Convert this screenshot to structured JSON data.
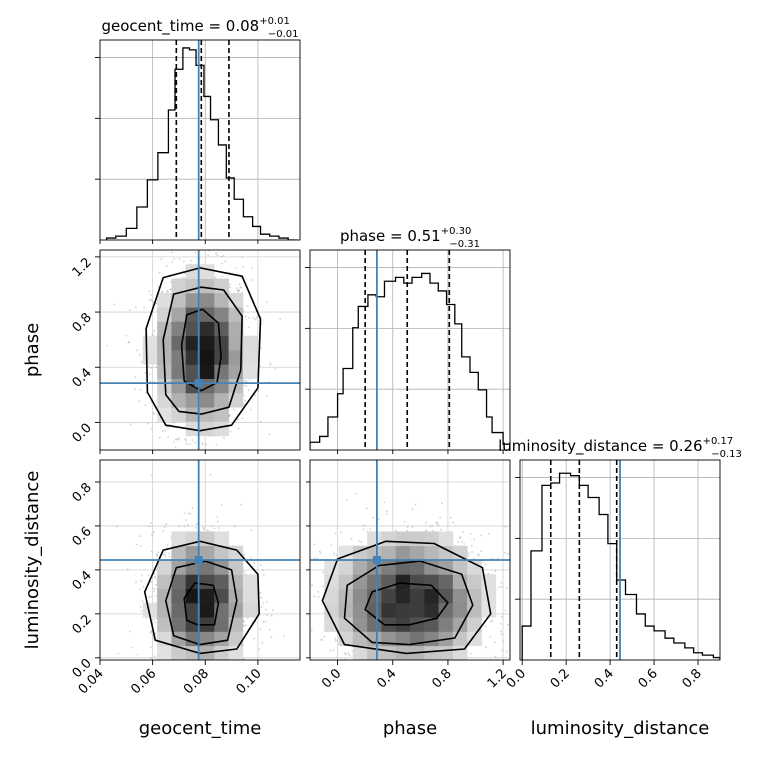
{
  "chart_data": {
    "type": "corner",
    "parameters": [
      "geocent_time",
      "phase",
      "luminosity_distance"
    ],
    "axes": {
      "geocent_time": {
        "label": "geocent_time",
        "range": [
          0.04,
          0.116
        ],
        "ticks": [
          "0.04",
          "0.06",
          "0.08",
          "0.10"
        ],
        "tick_values": [
          0.04,
          0.06,
          0.08,
          0.1
        ]
      },
      "phase": {
        "label": "phase",
        "range": [
          -0.2,
          1.25
        ],
        "ticks": [
          "0.0",
          "0.4",
          "0.8",
          "1.2"
        ],
        "tick_values": [
          0.0,
          0.4,
          0.8,
          1.2
        ]
      },
      "luminosity_distance": {
        "label": "luminosity_distance",
        "range": [
          -0.01,
          0.9
        ],
        "ticks": [
          "0.0",
          "0.2",
          "0.4",
          "0.6",
          "0.8"
        ],
        "tick_values": [
          0.0,
          0.2,
          0.4,
          0.6,
          0.8
        ]
      }
    },
    "titles": [
      {
        "param": "geocent_time",
        "name": "geocent_time",
        "median": "0.08",
        "plus": "+0.01",
        "minus": "−0.01"
      },
      {
        "param": "phase",
        "name": "phase",
        "median": "0.51",
        "plus": "+0.30",
        "minus": "−0.31"
      },
      {
        "param": "luminosity_distance",
        "name": "luminosity_distance",
        "median": "0.26",
        "plus": "+0.17",
        "minus": "−0.13"
      }
    ],
    "truths": {
      "geocent_time": 0.0775,
      "phase": 0.285,
      "luminosity_distance": 0.445
    },
    "quantiles": {
      "geocent_time": [
        0.069,
        0.0785,
        0.089
      ],
      "phase": [
        0.2,
        0.505,
        0.81
      ],
      "luminosity_distance": [
        0.13,
        0.26,
        0.43
      ]
    },
    "histograms": {
      "geocent_time": {
        "edges": [
          0.0425,
          0.046,
          0.05,
          0.054,
          0.058,
          0.062,
          0.066,
          0.0685,
          0.0715,
          0.074,
          0.0765,
          0.0795,
          0.082,
          0.085,
          0.088,
          0.091,
          0.0945,
          0.098,
          0.101,
          0.1045,
          0.108,
          0.1115,
          0.115
        ],
        "counts": [
          1,
          2,
          6,
          17,
          31,
          45,
          67,
          88,
          99,
          98,
          90,
          74,
          62,
          49,
          32,
          21,
          12,
          7,
          3,
          2,
          1,
          0
        ],
        "ymax": 100
      },
      "phase": {
        "edges": [
          -0.2,
          -0.13,
          -0.07,
          0.0,
          0.04,
          0.11,
          0.15,
          0.22,
          0.28,
          0.34,
          0.42,
          0.48,
          0.54,
          0.61,
          0.67,
          0.73,
          0.79,
          0.85,
          0.9,
          0.96,
          1.02,
          1.08,
          1.12,
          1.2,
          1.25
        ],
        "counts": [
          4,
          7,
          17,
          29,
          42,
          63,
          74,
          80,
          79,
          87,
          89,
          86,
          89,
          91,
          86,
          82,
          75,
          65,
          48,
          40,
          31,
          17,
          9,
          3
        ],
        "ymax": 100
      },
      "luminosity_distance": {
        "edges": [
          0.0,
          0.04,
          0.09,
          0.13,
          0.17,
          0.22,
          0.26,
          0.3,
          0.35,
          0.39,
          0.43,
          0.47,
          0.52,
          0.56,
          0.6,
          0.65,
          0.69,
          0.74,
          0.78,
          0.82,
          0.87,
          0.9
        ],
        "counts": [
          14,
          45,
          72,
          73,
          77,
          76,
          72,
          67,
          60,
          48,
          33,
          27,
          19,
          14,
          12,
          9,
          7,
          5,
          3,
          2,
          1
        ],
        "ymax": 80
      }
    },
    "scatter_2d": [
      {
        "x": "geocent_time",
        "y": "phase",
        "center": [
          0.0785,
          0.51
        ],
        "spread": [
          0.0095,
          0.3
        ],
        "contours": [
          [
            [
              0.0785,
              0.23
            ],
            [
              0.0845,
              0.29
            ],
            [
              0.086,
              0.48
            ],
            [
              0.085,
              0.72
            ],
            [
              0.079,
              0.82
            ],
            [
              0.073,
              0.78
            ],
            [
              0.071,
              0.56
            ],
            [
              0.072,
              0.3
            ]
          ],
          [
            [
              0.0785,
              0.06
            ],
            [
              0.089,
              0.11
            ],
            [
              0.0935,
              0.38
            ],
            [
              0.094,
              0.77
            ],
            [
              0.087,
              0.96
            ],
            [
              0.0785,
              0.98
            ],
            [
              0.068,
              0.93
            ],
            [
              0.064,
              0.6
            ],
            [
              0.065,
              0.2
            ],
            [
              0.07,
              0.08
            ]
          ],
          [
            [
              0.078,
              -0.06
            ],
            [
              0.09,
              -0.02
            ],
            [
              0.1,
              0.25
            ],
            [
              0.101,
              0.75
            ],
            [
              0.094,
              1.06
            ],
            [
              0.078,
              1.12
            ],
            [
              0.064,
              1.05
            ],
            [
              0.0575,
              0.68
            ],
            [
              0.058,
              0.22
            ],
            [
              0.065,
              -0.02
            ]
          ]
        ]
      },
      {
        "x": "geocent_time",
        "y": "luminosity_distance",
        "center": [
          0.0785,
          0.26
        ],
        "spread": [
          0.0095,
          0.16
        ],
        "contours": [
          [
            [
              0.077,
              0.15
            ],
            [
              0.0835,
              0.15
            ],
            [
              0.085,
              0.25
            ],
            [
              0.083,
              0.33
            ],
            [
              0.076,
              0.34
            ],
            [
              0.072,
              0.27
            ],
            [
              0.073,
              0.17
            ]
          ],
          [
            [
              0.078,
              0.06
            ],
            [
              0.0885,
              0.08
            ],
            [
              0.092,
              0.26
            ],
            [
              0.09,
              0.4
            ],
            [
              0.08,
              0.44
            ],
            [
              0.069,
              0.41
            ],
            [
              0.065,
              0.26
            ],
            [
              0.068,
              0.1
            ]
          ],
          [
            [
              0.078,
              0.02
            ],
            [
              0.092,
              0.04
            ],
            [
              0.1005,
              0.2
            ],
            [
              0.1,
              0.38
            ],
            [
              0.092,
              0.49
            ],
            [
              0.078,
              0.53
            ],
            [
              0.064,
              0.49
            ],
            [
              0.057,
              0.3
            ],
            [
              0.061,
              0.08
            ]
          ]
        ]
      },
      {
        "x": "phase",
        "y": "luminosity_distance",
        "center": [
          0.51,
          0.26
        ],
        "spread": [
          0.3,
          0.16
        ],
        "contours": [
          [
            [
              0.52,
              0.15
            ],
            [
              0.72,
              0.18
            ],
            [
              0.8,
              0.25
            ],
            [
              0.68,
              0.33
            ],
            [
              0.45,
              0.34
            ],
            [
              0.25,
              0.3
            ],
            [
              0.2,
              0.22
            ],
            [
              0.34,
              0.15
            ]
          ],
          [
            [
              0.52,
              0.06
            ],
            [
              0.85,
              0.09
            ],
            [
              0.98,
              0.24
            ],
            [
              0.9,
              0.38
            ],
            [
              0.6,
              0.44
            ],
            [
              0.3,
              0.42
            ],
            [
              0.07,
              0.33
            ],
            [
              0.05,
              0.18
            ],
            [
              0.25,
              0.07
            ]
          ],
          [
            [
              0.5,
              0.02
            ],
            [
              0.92,
              0.04
            ],
            [
              1.11,
              0.2
            ],
            [
              1.05,
              0.41
            ],
            [
              0.7,
              0.52
            ],
            [
              0.35,
              0.53
            ],
            [
              0.0,
              0.45
            ],
            [
              -0.11,
              0.26
            ],
            [
              0.05,
              0.06
            ]
          ]
        ]
      }
    ],
    "colors": {
      "truth": "#4682b4",
      "hist": "#000000",
      "grid": "#b0b0b0",
      "points": "#999999"
    }
  }
}
